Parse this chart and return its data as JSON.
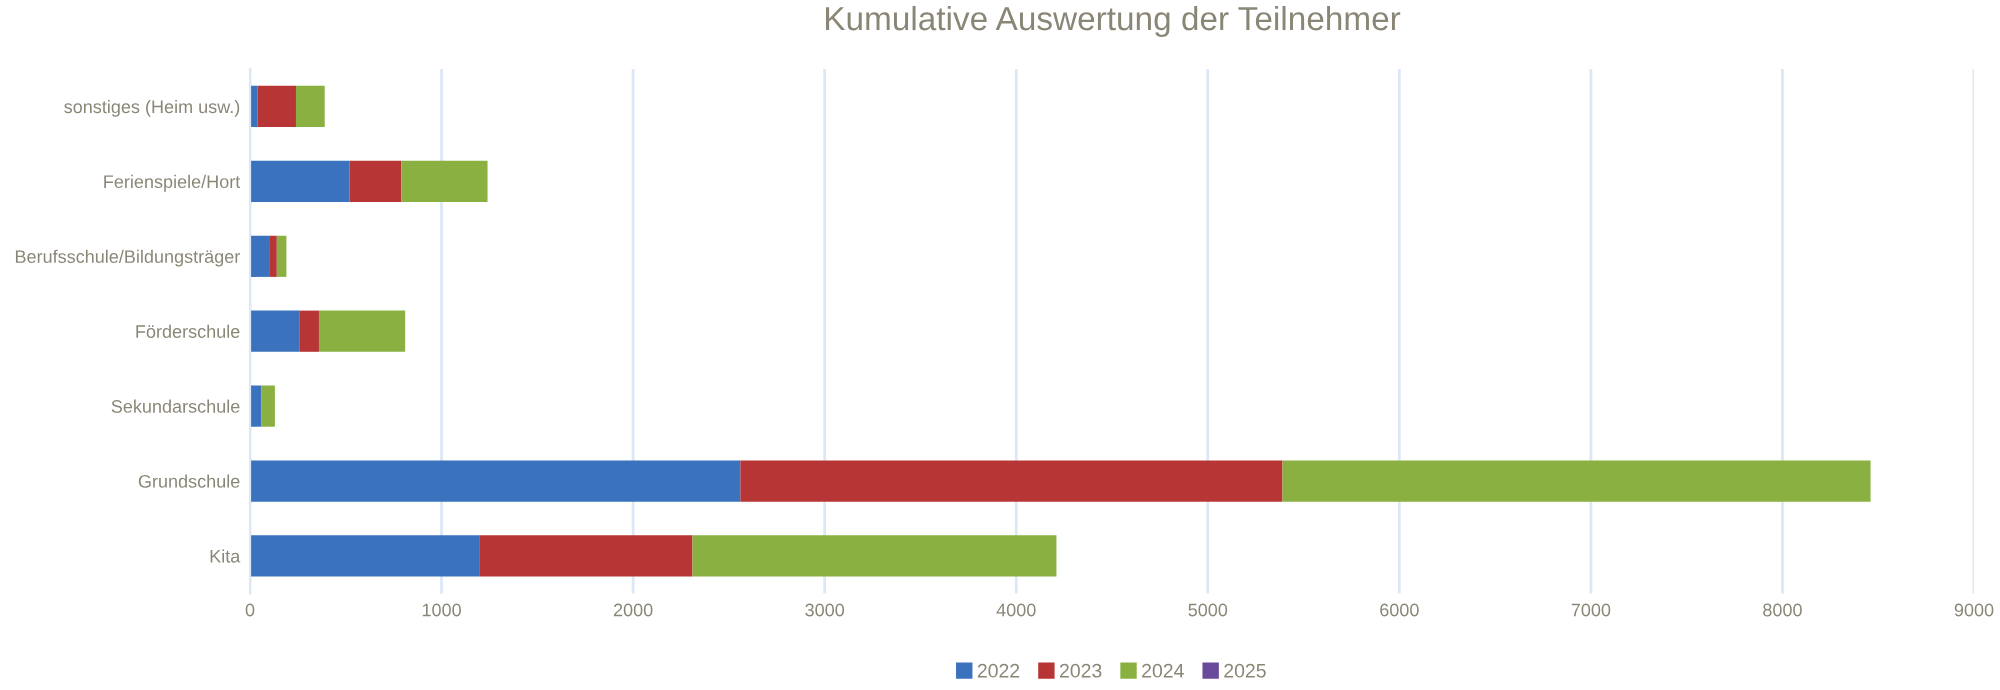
{
  "chart_data": {
    "type": "bar",
    "orientation": "horizontal",
    "stacked": true,
    "title": "Kumulative Auswertung der Teilnehmer",
    "categories": [
      "sonstiges (Heim usw.)",
      "Ferienspiele/Hort",
      "Berufsschule/Bildungsträger",
      "Förderschule",
      "Sekundarschule",
      "Grundschule",
      "Kita"
    ],
    "series": [
      {
        "name": "2022",
        "color": "#3a72bd",
        "values": [
          40,
          520,
          100,
          260,
          60,
          2560,
          1200
        ]
      },
      {
        "name": "2023",
        "color": "#b83535",
        "values": [
          200,
          270,
          40,
          100,
          0,
          2830,
          1110
        ]
      },
      {
        "name": "2024",
        "color": "#89b040",
        "values": [
          150,
          450,
          50,
          450,
          70,
          3070,
          1900
        ]
      },
      {
        "name": "2025",
        "color": "#6a4a9a",
        "values": [
          0,
          0,
          0,
          0,
          0,
          0,
          0
        ]
      }
    ],
    "xlim": [
      0,
      9000
    ],
    "xticks": [
      0,
      1000,
      2000,
      3000,
      4000,
      5000,
      6000,
      7000,
      8000,
      9000
    ],
    "grid": "x",
    "legend": "bottom"
  }
}
